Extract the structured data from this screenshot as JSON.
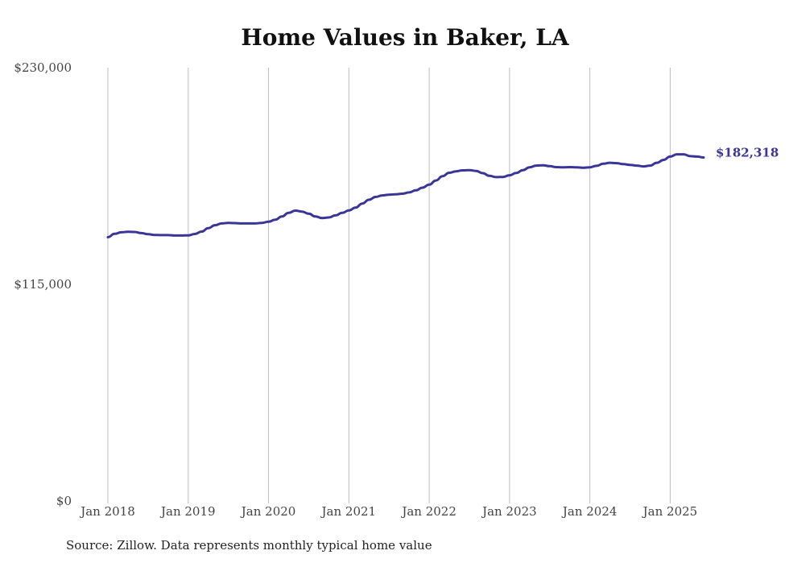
{
  "chart_data": {
    "type": "line",
    "title": "Home Values in Baker, LA",
    "xlabel": "",
    "ylabel": "",
    "source": "Source: Zillow. Data represents monthly typical home value",
    "ylim": [
      0,
      230000
    ],
    "yticks": [
      0,
      115000,
      230000
    ],
    "ytick_labels": [
      "$0",
      "$115,000",
      "$230,000"
    ],
    "xlim": [
      "2018-01",
      "2025-06"
    ],
    "xtick_labels": [
      "Jan 2018",
      "Jan 2019",
      "Jan 2020",
      "Jan 2021",
      "Jan 2022",
      "Jan 2023",
      "Jan 2024",
      "Jan 2025"
    ],
    "xtick_dates": [
      "2018-01",
      "2019-01",
      "2020-01",
      "2021-01",
      "2022-01",
      "2023-01",
      "2024-01",
      "2025-01"
    ],
    "grid": "vertical",
    "color": "#3a3597",
    "end_label": "$182,318",
    "series": [
      {
        "x": [
          "2018-01",
          "2018-02",
          "2018-03",
          "2018-04",
          "2018-05",
          "2018-06",
          "2018-07",
          "2018-08",
          "2018-09",
          "2018-10",
          "2018-11",
          "2018-12",
          "2019-01",
          "2019-02",
          "2019-03",
          "2019-04",
          "2019-05",
          "2019-06",
          "2019-07",
          "2019-08",
          "2019-09",
          "2019-10",
          "2019-11",
          "2019-12",
          "2020-01",
          "2020-02",
          "2020-03",
          "2020-04",
          "2020-05",
          "2020-06",
          "2020-07",
          "2020-08",
          "2020-09",
          "2020-10",
          "2020-11",
          "2020-12",
          "2021-01",
          "2021-02",
          "2021-03",
          "2021-04",
          "2021-05",
          "2021-06",
          "2021-07",
          "2021-08",
          "2021-09",
          "2021-10",
          "2021-11",
          "2021-12",
          "2022-01",
          "2022-02",
          "2022-03",
          "2022-04",
          "2022-05",
          "2022-06",
          "2022-07",
          "2022-08",
          "2022-09",
          "2022-10",
          "2022-11",
          "2022-12",
          "2023-01",
          "2023-02",
          "2023-03",
          "2023-04",
          "2023-05",
          "2023-06",
          "2023-07",
          "2023-08",
          "2023-09",
          "2023-10",
          "2023-11",
          "2023-12",
          "2024-01",
          "2024-02",
          "2024-03",
          "2024-04",
          "2024-05",
          "2024-06",
          "2024-07",
          "2024-08",
          "2024-09",
          "2024-10",
          "2024-11",
          "2024-12",
          "2025-01",
          "2025-02",
          "2025-03",
          "2025-04",
          "2025-05",
          "2025-06"
        ],
        "values": [
          140000,
          141800,
          142600,
          142900,
          142800,
          142200,
          141600,
          141200,
          141100,
          141100,
          140900,
          140900,
          141000,
          141700,
          143000,
          144800,
          146400,
          147300,
          147600,
          147500,
          147300,
          147300,
          147300,
          147600,
          148200,
          149300,
          151000,
          152900,
          154100,
          153600,
          152500,
          151000,
          150200,
          150500,
          151600,
          152900,
          154200,
          155700,
          157900,
          159900,
          161400,
          162200,
          162600,
          162800,
          163100,
          163800,
          164900,
          166300,
          167900,
          170100,
          172400,
          174200,
          175000,
          175500,
          175600,
          175200,
          174000,
          172600,
          171900,
          172000,
          172900,
          174100,
          175600,
          177100,
          178000,
          178200,
          177700,
          177200,
          177100,
          177200,
          177100,
          176900,
          177100,
          177900,
          179000,
          179500,
          179300,
          178800,
          178400,
          178000,
          177600,
          178000,
          179500,
          181000,
          182800,
          184000,
          184000,
          183000,
          182800,
          182318
        ]
      }
    ]
  }
}
